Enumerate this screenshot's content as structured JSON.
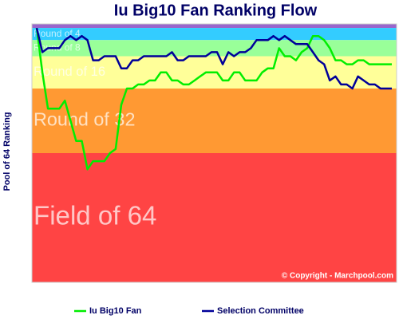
{
  "chart_data": {
    "type": "line",
    "title": "Iu Big10 Fan Ranking Flow",
    "y_label": "Pool of 64 Ranking",
    "annotation": "© Copyright - Marchpool.com",
    "ylim": [
      0,
      64
    ],
    "y_inverted": true,
    "bands": [
      {
        "from": 0,
        "to": 1,
        "color": "#9966cc"
      },
      {
        "from": 1,
        "to": 4,
        "color": "#33ccff",
        "label": "Round of 4"
      },
      {
        "from": 4,
        "to": 8,
        "color": "#99ff99",
        "label": "Round of 8"
      },
      {
        "from": 8,
        "to": 16,
        "color": "#ffff99",
        "label": "Round of 16"
      },
      {
        "from": 16,
        "to": 32,
        "color": "#ff9933",
        "label": "Round of 32"
      },
      {
        "from": 32,
        "to": 64,
        "color": "#ff4444",
        "label": "Field of 64"
      }
    ],
    "series": [
      {
        "name": "Iu Big10 Fan",
        "color": "#00ee00",
        "values": [
          1,
          12,
          21,
          21,
          21,
          19,
          24,
          29,
          29,
          36,
          34,
          34,
          34,
          32,
          31,
          20,
          16,
          16,
          15,
          15,
          14,
          14,
          12,
          12,
          14,
          14,
          15,
          15,
          14,
          13,
          12,
          12,
          12,
          14,
          14,
          12,
          12,
          14,
          14,
          14,
          12,
          11,
          11,
          6,
          8,
          8,
          9,
          7,
          6,
          3,
          3,
          4,
          6,
          9,
          9,
          10,
          10,
          9,
          9,
          10,
          10,
          10,
          10,
          10
        ]
      },
      {
        "name": "Selection Committee",
        "color": "#000099",
        "values": [
          1,
          7,
          6,
          6,
          6,
          4,
          3,
          4,
          3,
          4,
          9,
          9,
          8,
          8,
          8,
          11,
          11,
          9,
          9,
          8,
          8,
          8,
          8,
          8,
          7,
          9,
          9,
          8,
          8,
          8,
          8,
          7,
          7,
          10,
          7,
          8,
          7,
          7,
          6,
          4,
          4,
          4,
          3,
          4,
          3,
          4,
          5,
          5,
          5,
          7,
          9,
          10,
          14,
          13,
          15,
          15,
          16,
          13,
          14,
          15,
          15,
          16,
          16,
          16
        ]
      }
    ]
  }
}
